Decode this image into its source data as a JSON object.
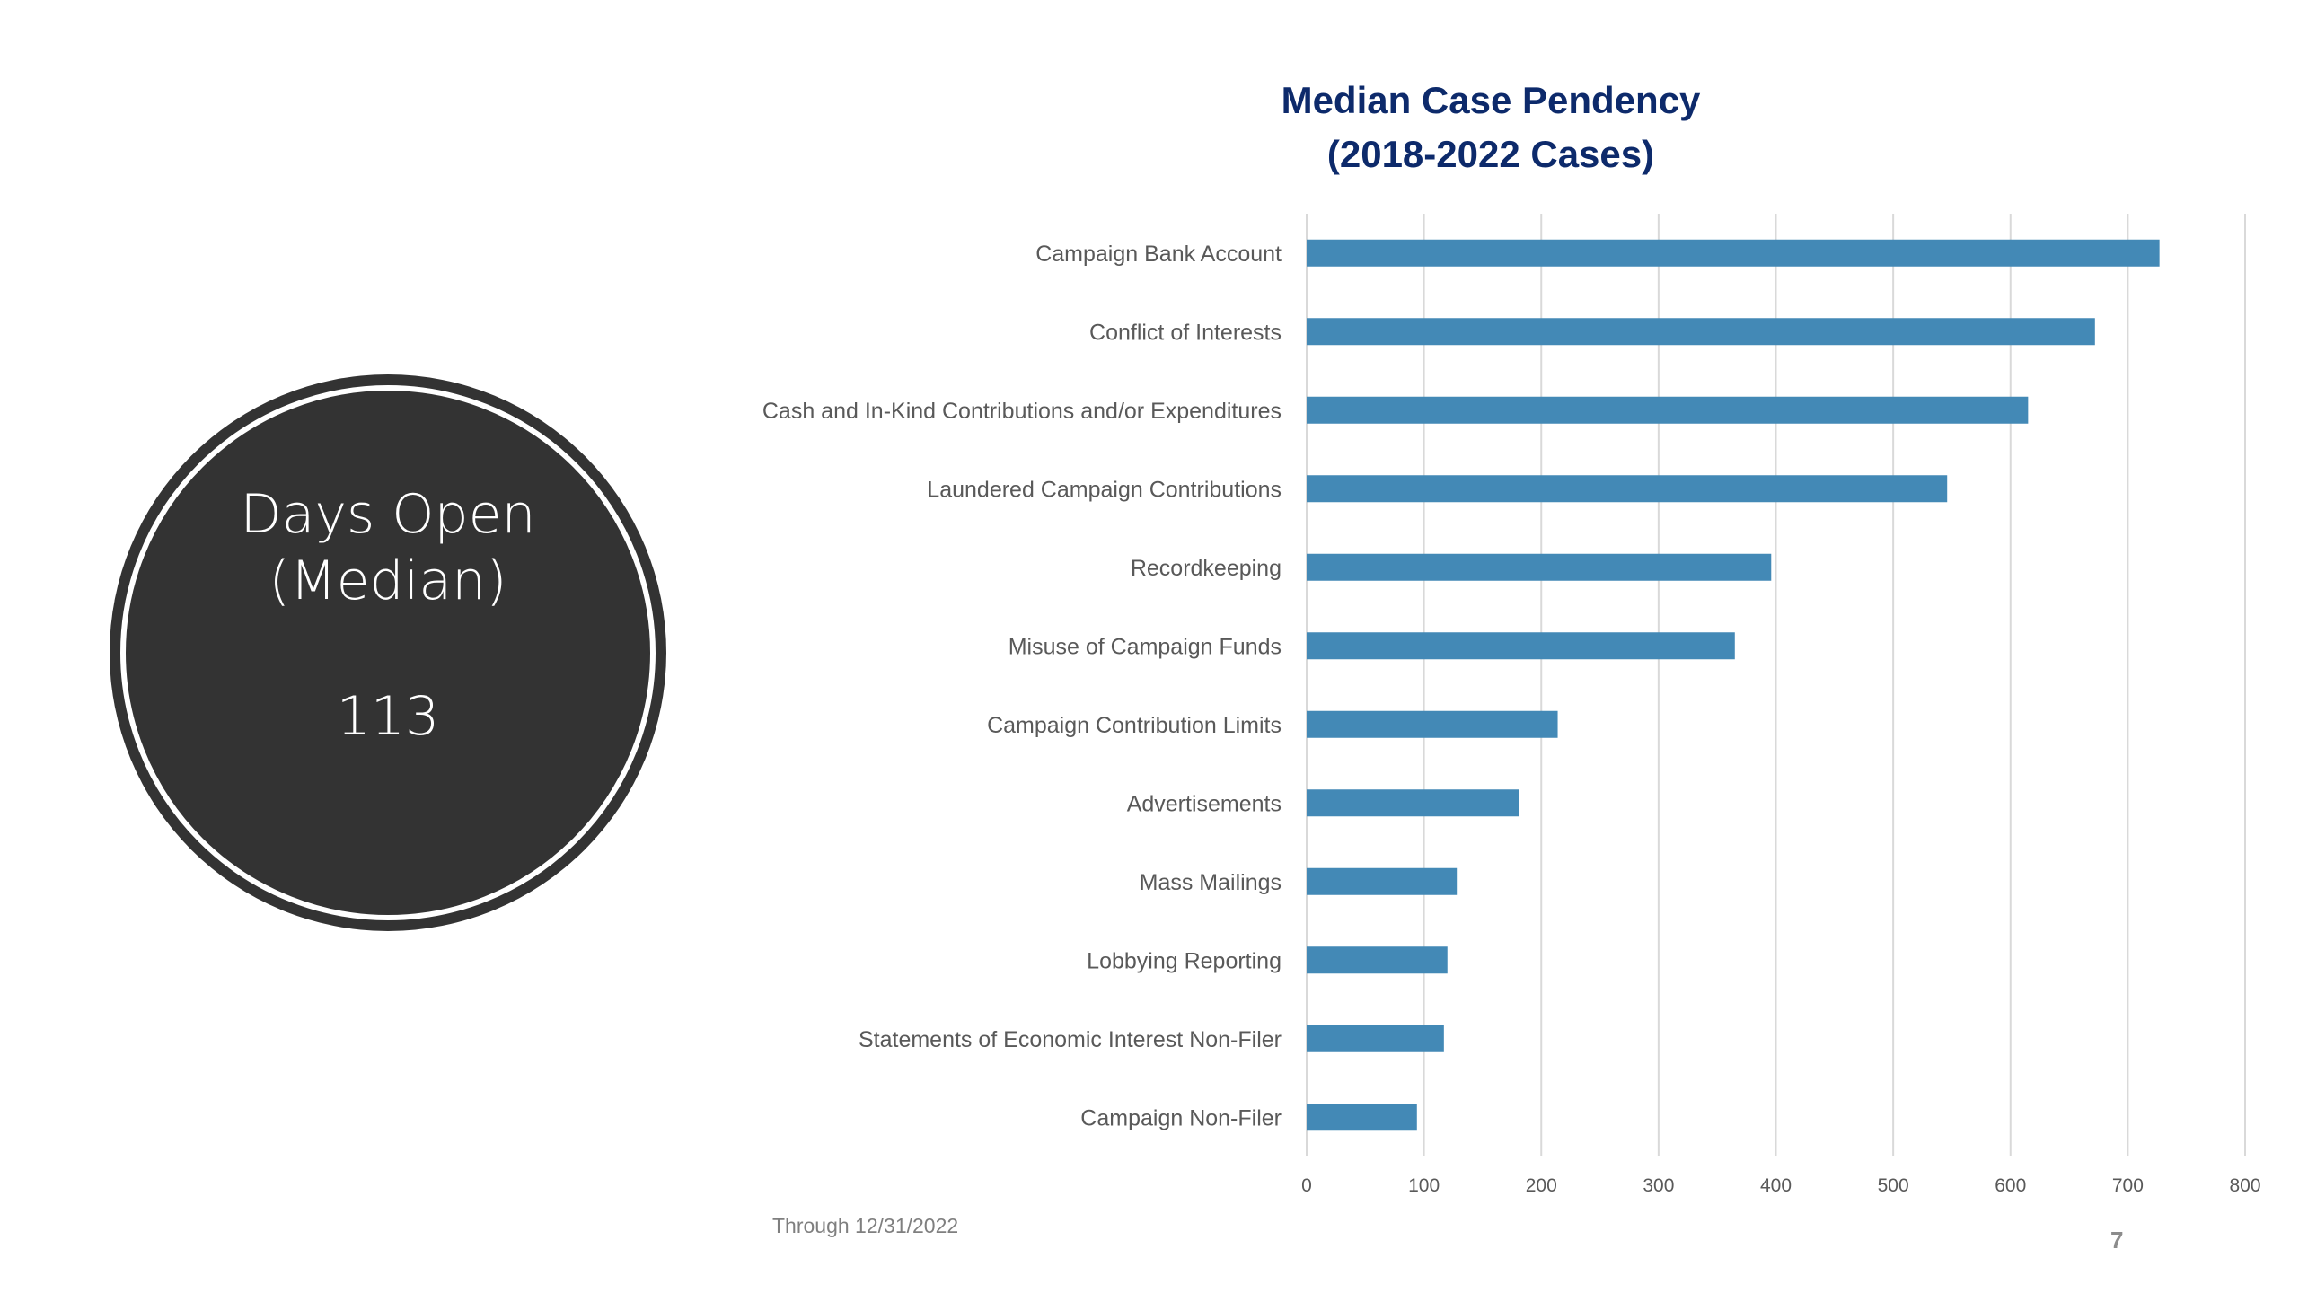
{
  "summary": {
    "label_line1": "Days Open",
    "label_line2": "(Median)",
    "value": "113",
    "fill_color": "#333333"
  },
  "footnote": "Through 12/31/2022",
  "page_number": "7",
  "chart_data": {
    "type": "bar",
    "orientation": "horizontal",
    "title": "Median Case Pendency (2018-2022 Cases)",
    "title_lines": [
      "Median Case Pendency",
      "(2018-2022 Cases)"
    ],
    "xlabel": "",
    "ylabel": "",
    "categories": [
      "Campaign Bank Account",
      "Conflict of Interests",
      "Cash and In-Kind Contributions and/or Expenditures",
      "Laundered Campaign Contributions",
      "Recordkeeping",
      "Misuse of Campaign Funds",
      "Campaign Contribution Limits",
      "Advertisements",
      "Mass Mailings",
      "Lobbying Reporting",
      "Statements of Economic Interest Non-Filer",
      "Campaign Non-Filer"
    ],
    "values": [
      727,
      672,
      615,
      546,
      396,
      365,
      214,
      181,
      128,
      120,
      117,
      94
    ],
    "xlim": [
      0,
      800
    ],
    "xticks": [
      "0",
      "100",
      "200",
      "300",
      "400",
      "500",
      "600",
      "700",
      "800"
    ],
    "grid": true,
    "legend": "none",
    "bar_color": "#4389b6",
    "grid_color": "#d9d9d9"
  }
}
